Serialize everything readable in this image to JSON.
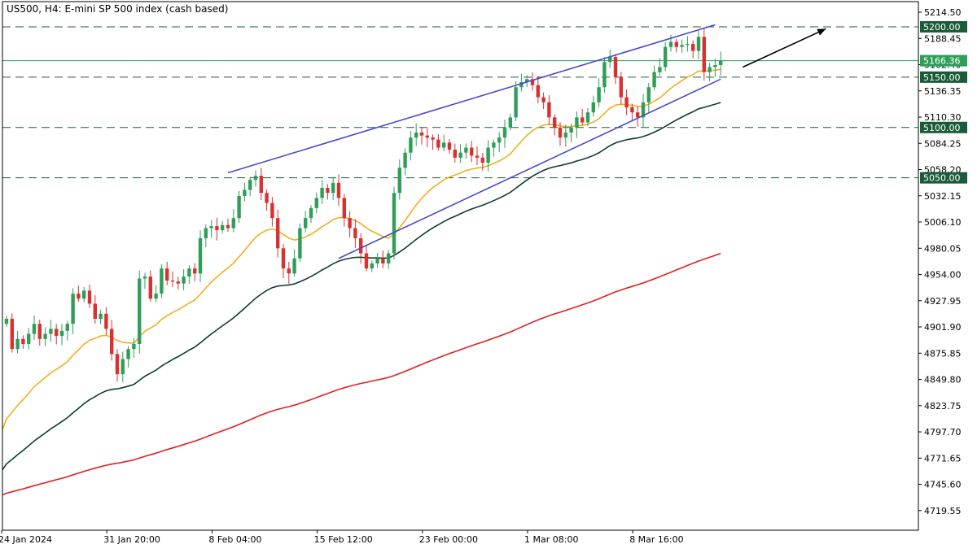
{
  "chart_title": "US500, H4:  E-mini SP 500 index (cash based)",
  "chart_data": {
    "type": "candlestick",
    "title": "US500, H4:  E-mini SP 500 index (cash based)",
    "ylim": [
      4700,
      5225
    ],
    "y_ticks": [
      "5214.50",
      "5188.45",
      "5162.40",
      "5136.35",
      "5110.30",
      "5084.25",
      "5058.20",
      "5032.15",
      "5006.10",
      "4980.05",
      "4954.00",
      "4927.95",
      "4901.90",
      "4875.85",
      "4849.80",
      "4823.75",
      "4797.70",
      "4771.65",
      "4745.60",
      "4719.55"
    ],
    "x_ticks": [
      "24 Jan 2024",
      "31 Jan 20:00",
      "8 Feb 04:00",
      "15 Feb 12:00",
      "23 Feb 00:00",
      "1 Mar 08:00",
      "8 Mar 16:00"
    ],
    "price_labels": [
      {
        "label": "5200.00",
        "value": 5200.0,
        "color": "#1a5c3a"
      },
      {
        "label": "5166.36",
        "value": 5166.36,
        "color": "#2e9e58"
      },
      {
        "label": "5150.00",
        "value": 5150.0,
        "color": "#1a5c3a"
      },
      {
        "label": "5100.00",
        "value": 5100.0,
        "color": "#1a5c3a"
      },
      {
        "label": "5050.00",
        "value": 5050.0,
        "color": "#1a5c3a"
      }
    ],
    "horizontal_levels": [
      5200,
      5150,
      5100,
      5050
    ],
    "current_price": 5166.36,
    "colors": {
      "bull": "#2e9e58",
      "bear": "#d93030",
      "ma_fast": "#f0b020",
      "ma_mid": "#0f3d2a",
      "ma_slow": "#e02020",
      "trend": "#4a4ac8",
      "level": "#1a5c3a"
    },
    "candles_close": [
      4910,
      4880,
      4890,
      4885,
      4895,
      4905,
      4890,
      4895,
      4900,
      4893,
      4898,
      4905,
      4935,
      4930,
      4938,
      4925,
      4910,
      4915,
      4900,
      4875,
      4855,
      4870,
      4880,
      4885,
      4950,
      4952,
      4930,
      4935,
      4960,
      4948,
      4947,
      4945,
      4952,
      4960,
      4955,
      4990,
      5000,
      5002,
      4998,
      5003,
      5000,
      5010,
      5032,
      5038,
      5048,
      5052,
      5035,
      5025,
      5010,
      4980,
      4960,
      4955,
      4970,
      5000,
      5010,
      5020,
      5030,
      5040,
      5035,
      5045,
      5030,
      5010,
      5000,
      4990,
      4975,
      4960,
      4965,
      4970,
      4965,
      4975,
      5035,
      5060,
      5075,
      5090,
      5095,
      5092,
      5090,
      5088,
      5080,
      5085,
      5078,
      5070,
      5075,
      5080,
      5072,
      5070,
      5065,
      5080,
      5085,
      5090,
      5100,
      5110,
      5140,
      5145,
      5148,
      5142,
      5130,
      5125,
      5110,
      5100,
      5090,
      5095,
      5100,
      5110,
      5105,
      5115,
      5125,
      5140,
      5165,
      5170,
      5150,
      5130,
      5120,
      5115,
      5110,
      5125,
      5140,
      5155,
      5160,
      5180,
      5185,
      5180,
      5182,
      5183,
      5176,
      5190,
      5155,
      5160,
      5162,
      5166.36
    ],
    "resistance_line": {
      "from": {
        "index": 40,
        "value": 5055
      },
      "to": {
        "index": 128,
        "value": 5202
      }
    },
    "support_line": {
      "from": {
        "index": 60,
        "value": 4970
      },
      "to": {
        "index": 129,
        "value": 5148
      }
    },
    "arrow": {
      "from": {
        "index": 133,
        "value": 5160
      },
      "to": {
        "index": 148,
        "value": 5198
      }
    }
  }
}
